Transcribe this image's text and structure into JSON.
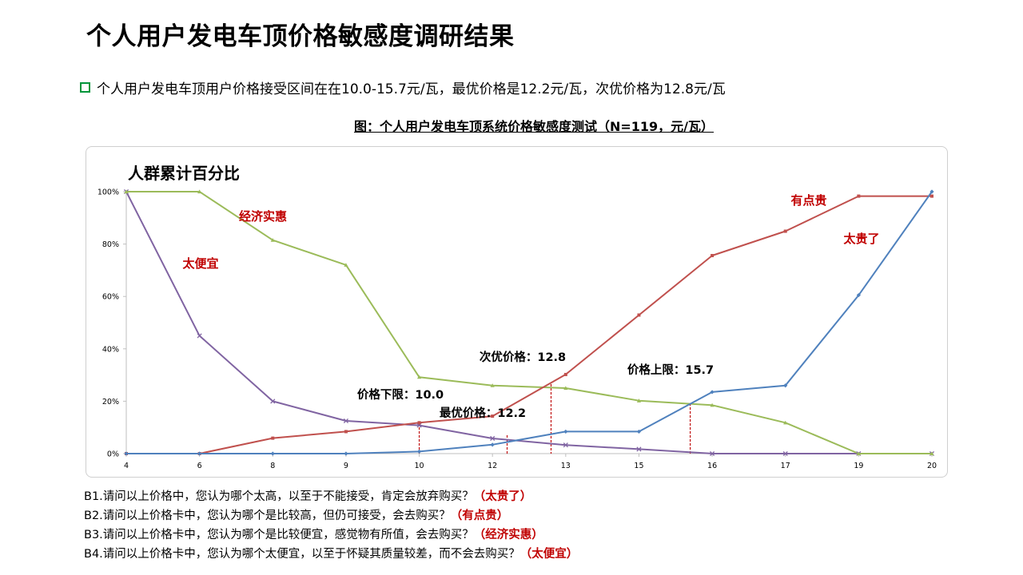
{
  "title": "个人用户发电车顶价格敏感度调研结果",
  "bullet": "个人用户发电车顶用户价格接受区间在在10.0-15.7元/瓦，最优价格是12.2元/瓦，次优价格为12.8元/瓦",
  "figure_caption": "图：个人用户发电车顶系统价格敏感度测试（N=119，元/瓦）",
  "questions": [
    {
      "text": "B1.请问以上价格中，您认为哪个太高，以至于不能接受，肯定会放弃购买？",
      "answer": "（太贵了）"
    },
    {
      "text": "B2.请问以上价格卡中，您认为哪个是比较高，但仍可接受，会去购买？",
      "answer": "（有点贵）"
    },
    {
      "text": "B3.请问以上价格卡中，您认为哪个是比较便宜，感觉物有所值，会去购买？",
      "answer": "（经济实惠）"
    },
    {
      "text": "B4.请问以上价格卡中，您认为哪个太便宜，以至于怀疑其质量较差，而不会去购买？",
      "answer": "（太便宜）"
    }
  ],
  "chart_data": {
    "type": "line",
    "title": "人群累计百分比",
    "categories": [
      "4",
      "6",
      "8",
      "9",
      "10",
      "12",
      "13",
      "15",
      "16",
      "17",
      "19",
      "20"
    ],
    "y_ticks": [
      "0%",
      "20%",
      "40%",
      "60%",
      "80%",
      "100%"
    ],
    "ylim": [
      0,
      100
    ],
    "grid": false,
    "series": [
      {
        "name": "太便宜",
        "color": "#8064a2",
        "marker": "x",
        "values": [
          100,
          45,
          20,
          12.5,
          10.8,
          5.8,
          3.3,
          1.7,
          0,
          0,
          0,
          0
        ]
      },
      {
        "name": "经济实惠",
        "color": "#9bbb59",
        "marker": "triangle",
        "values": [
          100,
          100,
          81.5,
          72,
          29.2,
          26,
          25,
          20.2,
          18.5,
          11.8,
          0,
          0
        ]
      },
      {
        "name": "有点贵",
        "color": "#c0504d",
        "marker": "square",
        "values": [
          0,
          0,
          5.9,
          8.4,
          11.8,
          14.3,
          30.2,
          52.9,
          75.6,
          84.9,
          98.3,
          98.3
        ]
      },
      {
        "name": "太贵了",
        "color": "#4f81bd",
        "marker": "diamond",
        "values": [
          0,
          0,
          0,
          0,
          0.8,
          3.4,
          8.4,
          8.4,
          23.5,
          26,
          60.5,
          100
        ]
      }
    ],
    "annotations": [
      {
        "text": "价格下限：10.0",
        "x_value": 10.0
      },
      {
        "text": "最优价格：12.2",
        "x_value": 12.2
      },
      {
        "text": "次优价格：12.8",
        "x_value": 12.8
      },
      {
        "text": "价格上限：15.7",
        "x_value": 15.7
      }
    ],
    "reference_line_color": "#c00000"
  }
}
